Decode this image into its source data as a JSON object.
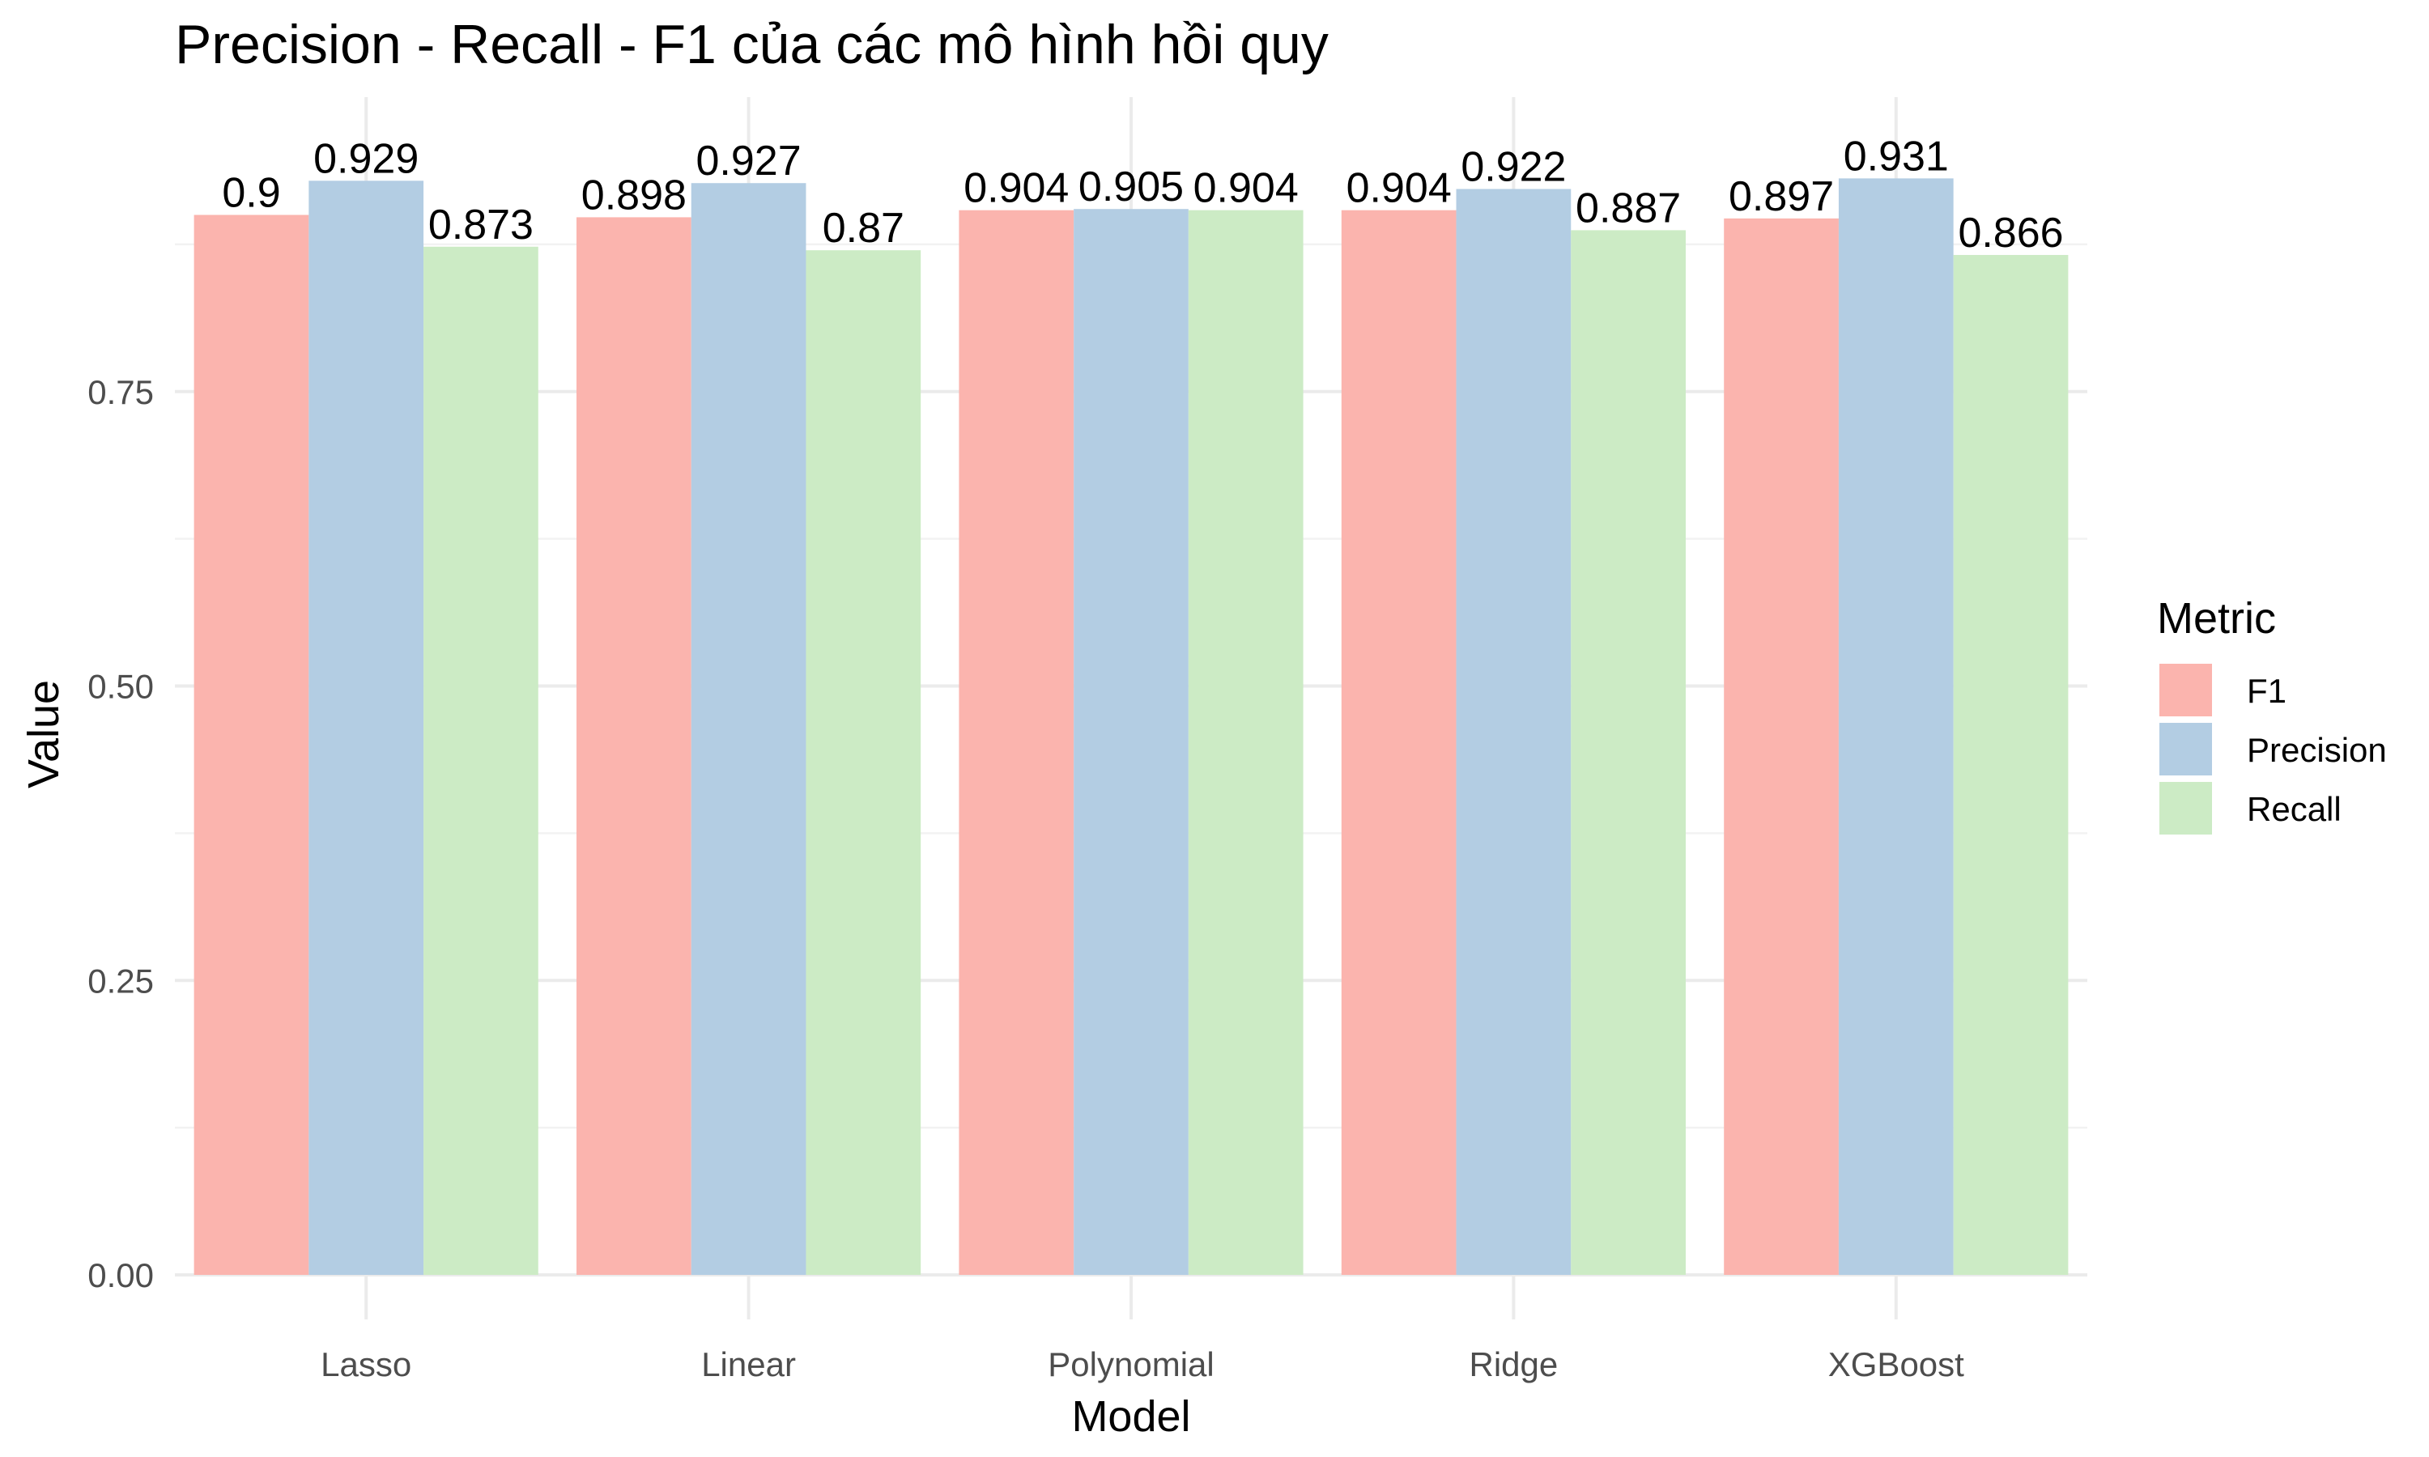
{
  "chart_data": {
    "type": "bar",
    "title": "Precision - Recall - F1 của các mô hình hồi quy",
    "xlabel": "Model",
    "ylabel": "Value",
    "ylim": [
      0,
      1
    ],
    "yticks": [
      0,
      0.25,
      0.5,
      0.75
    ],
    "ytick_labels": [
      "0.00",
      "0.25",
      "0.50",
      "0.75"
    ],
    "categories": [
      "Lasso",
      "Linear",
      "Polynomial",
      "Ridge",
      "XGBoost"
    ],
    "series": [
      {
        "name": "F1",
        "color": "#fbb4ae",
        "values": [
          0.9,
          0.898,
          0.904,
          0.904,
          0.897
        ],
        "labels": [
          "0.9",
          "0.898",
          "0.904",
          "0.904",
          "0.897"
        ]
      },
      {
        "name": "Precision",
        "color": "#b3cde3",
        "values": [
          0.929,
          0.927,
          0.905,
          0.922,
          0.931
        ],
        "labels": [
          "0.929",
          "0.927",
          "0.905",
          "0.922",
          "0.931"
        ]
      },
      {
        "name": "Recall",
        "color": "#ccebc5",
        "values": [
          0.873,
          0.87,
          0.904,
          0.887,
          0.866
        ],
        "labels": [
          "0.873",
          "0.87",
          "0.904",
          "0.887",
          "0.866"
        ]
      }
    ],
    "legend": {
      "title": "Metric",
      "position": "right"
    },
    "grid": true
  }
}
